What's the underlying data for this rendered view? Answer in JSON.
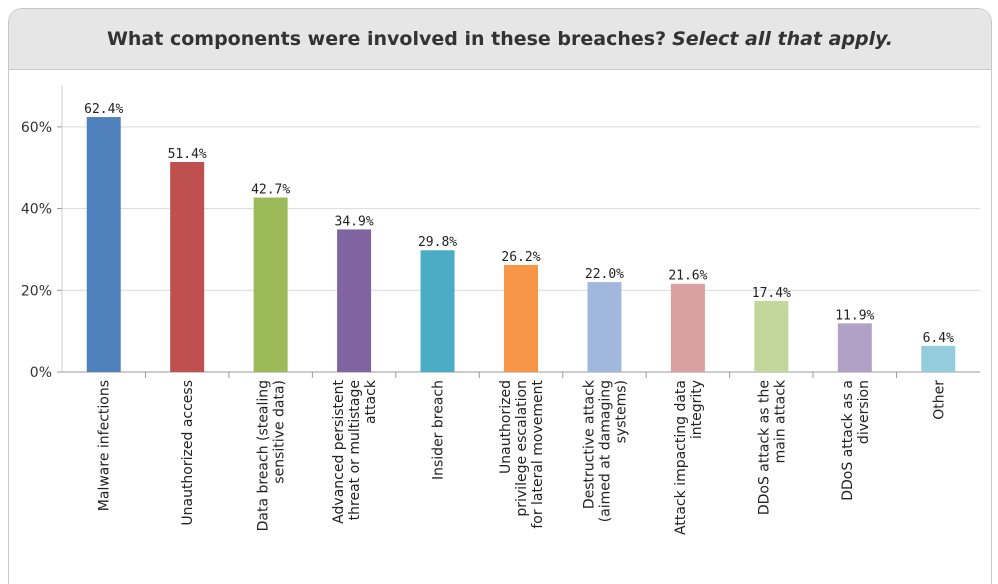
{
  "chart_data": {
    "type": "bar",
    "title": "What components were involved in these breaches?",
    "subtitle": "Select all that apply.",
    "categories": [
      [
        "Malware infections"
      ],
      [
        "Unauthorized access"
      ],
      [
        "Data breach (stealing",
        "sensitive data)"
      ],
      [
        "Advanced persistent",
        "threat or multistage",
        "attack"
      ],
      [
        "Insider breach"
      ],
      [
        "Unauthorized",
        "privilege escalation",
        "for lateral movement"
      ],
      [
        "Destructive attack",
        "(aimed at damaging",
        "systems)"
      ],
      [
        "Attack impacting data",
        "integrity"
      ],
      [
        "DDoS attack as the",
        "main attack"
      ],
      [
        "DDoS attack as a",
        "diversion"
      ],
      [
        "Other"
      ]
    ],
    "values": [
      62.4,
      51.4,
      42.7,
      34.9,
      29.8,
      26.2,
      22.0,
      21.6,
      17.4,
      11.9,
      6.4
    ],
    "data_labels": [
      "62.4%",
      "51.4%",
      "42.7%",
      "34.9%",
      "29.8%",
      "26.2%",
      "22.0%",
      "21.6%",
      "17.4%",
      "11.9%",
      "6.4%"
    ],
    "colors": [
      "#4f81bd",
      "#c0504d",
      "#9bbb59",
      "#8064a2",
      "#4bacc6",
      "#f79646",
      "#a2b7dd",
      "#d9a0a0",
      "#c3d69b",
      "#b2a1c7",
      "#93cddd"
    ],
    "ylim": [
      0,
      70
    ],
    "yticks": [
      0,
      20,
      40,
      60
    ],
    "ytick_labels": [
      "0%",
      "20%",
      "40%",
      "60%"
    ],
    "grid": true,
    "legend": "none",
    "xlabel": "",
    "ylabel": ""
  }
}
